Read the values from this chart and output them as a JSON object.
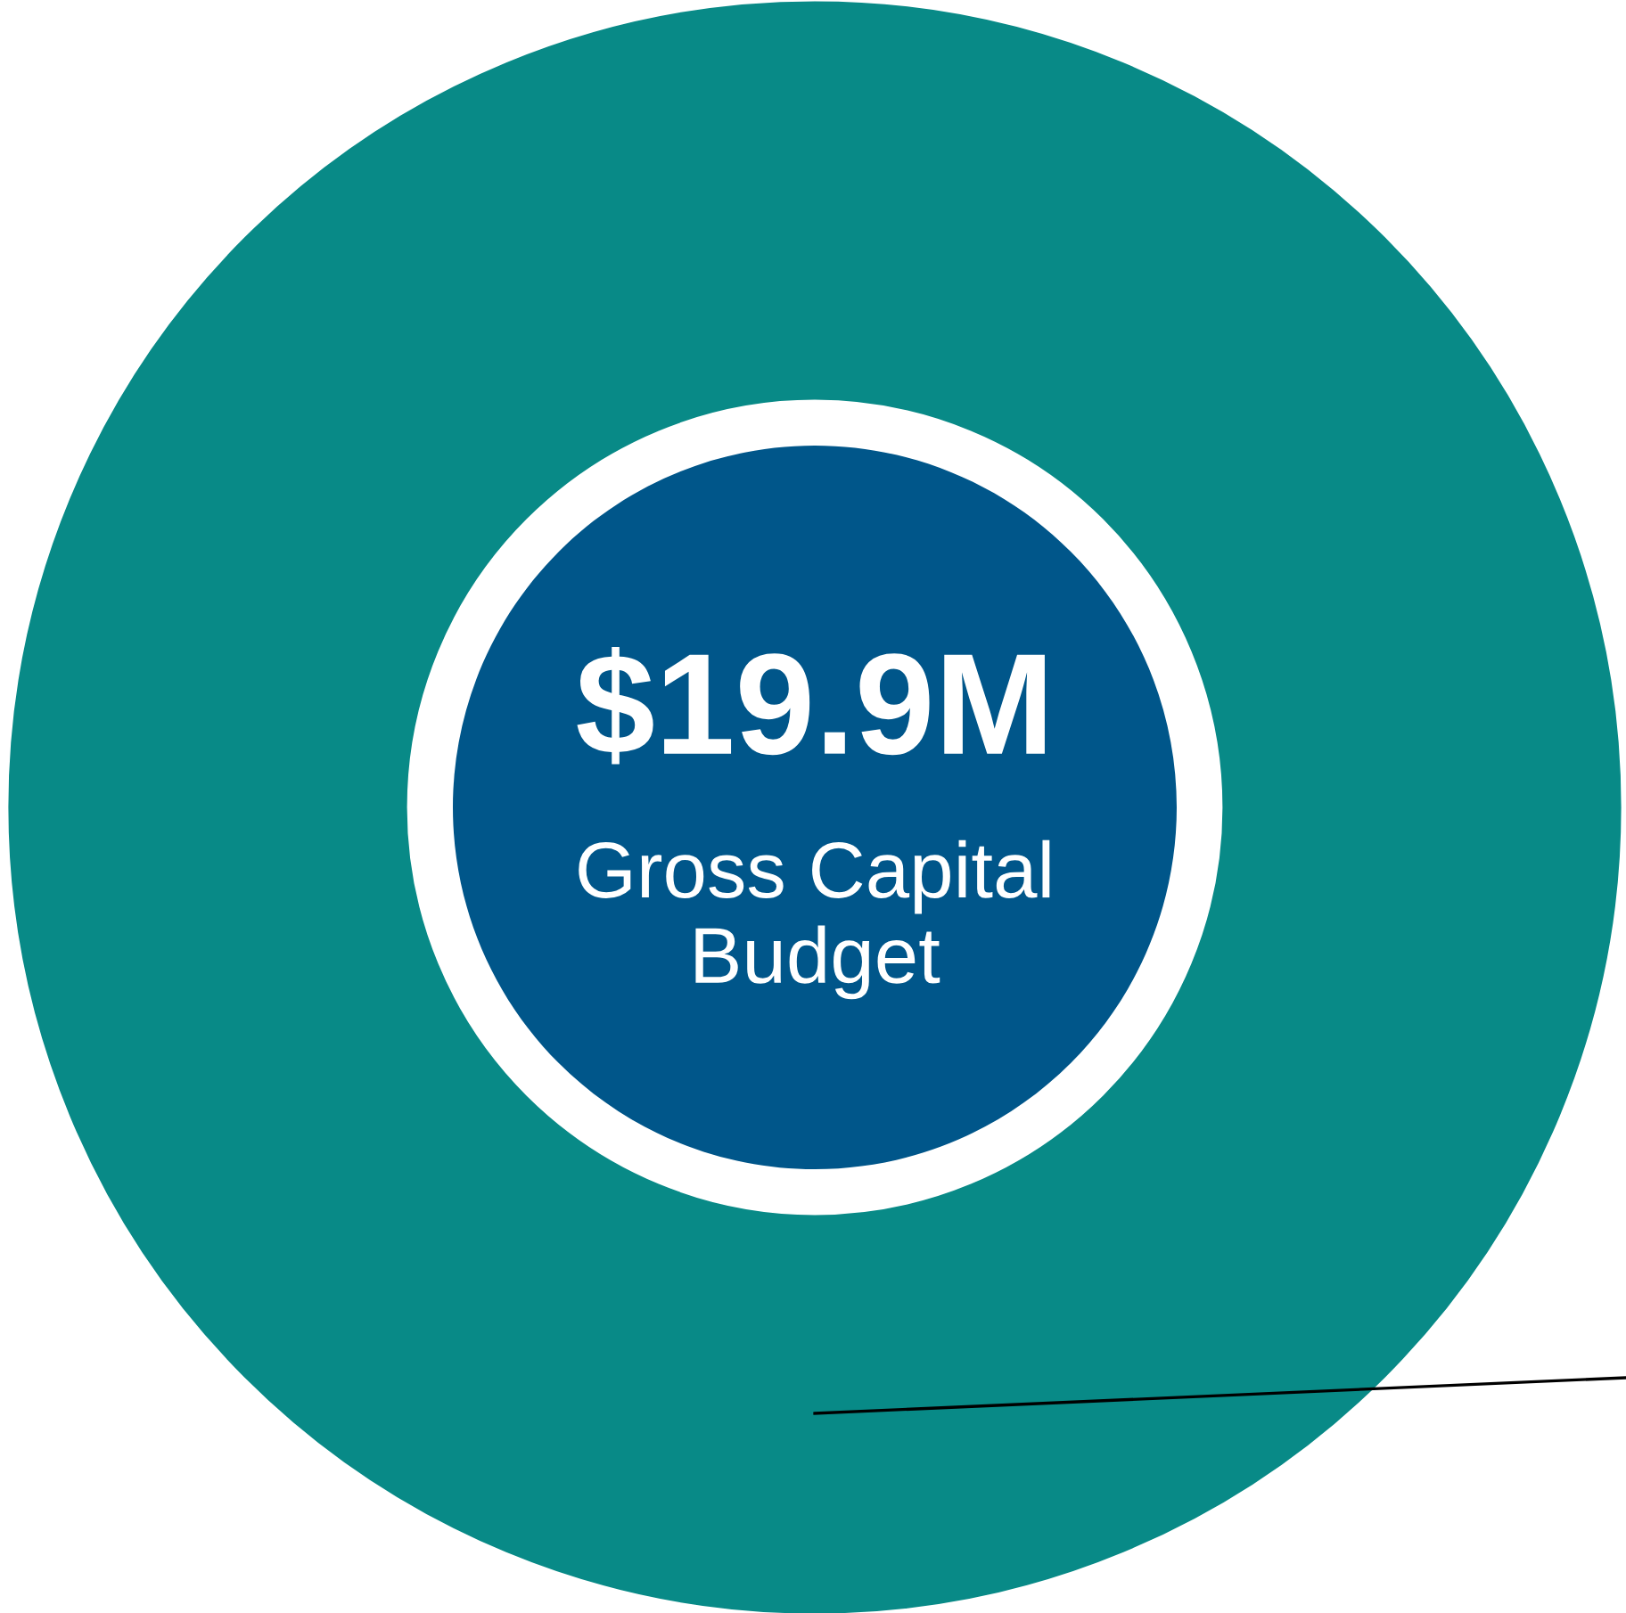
{
  "chart_data": {
    "type": "donut",
    "title": "$19.9M",
    "subtitle": "Gross Capital Budget",
    "categories": [
      null
    ],
    "values": [
      100
    ],
    "colors": [
      "#088a87"
    ]
  }
}
